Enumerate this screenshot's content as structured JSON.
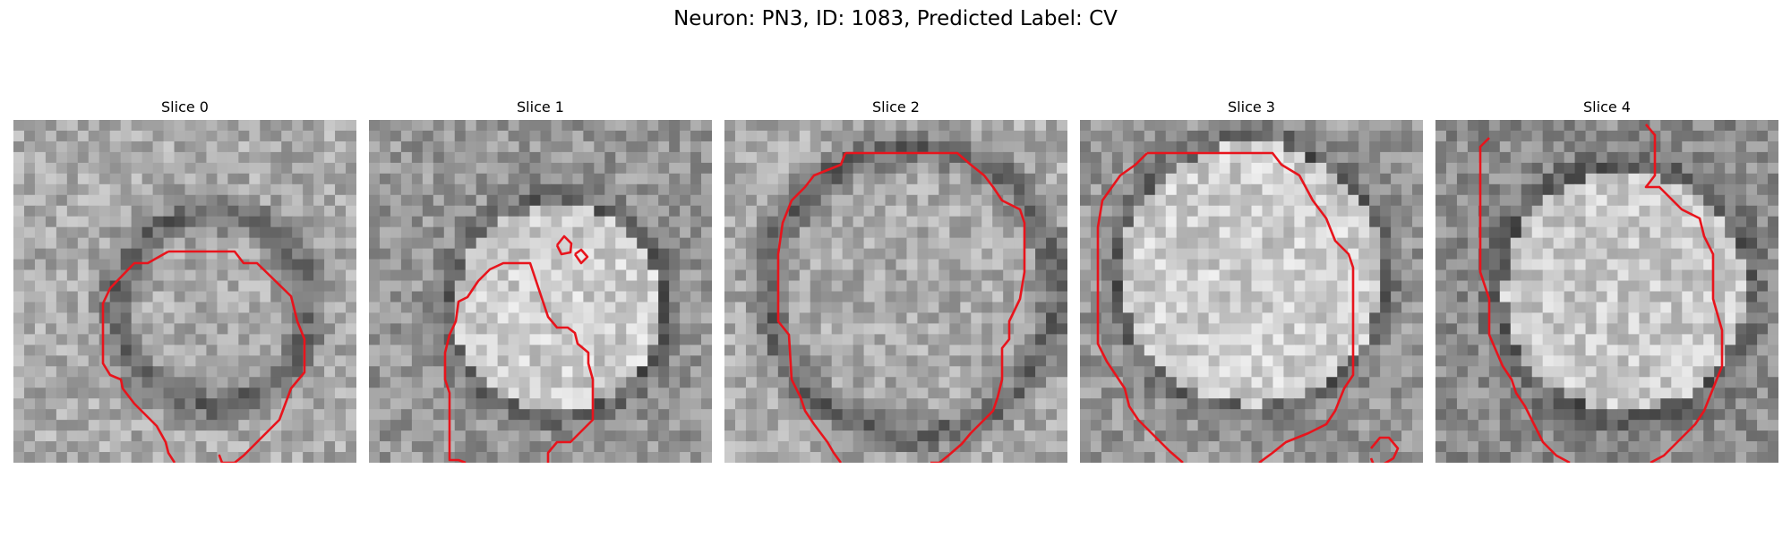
{
  "figure": {
    "title": "Neuron: PN3, ID: 1083, Predicted Label: CV"
  },
  "colors": {
    "contour": "#e8141c"
  },
  "panels": [
    {
      "title": "Slice 0"
    },
    {
      "title": "Slice 1"
    },
    {
      "title": "Slice 2"
    },
    {
      "title": "Slice 3"
    },
    {
      "title": "Slice 4"
    }
  ]
}
